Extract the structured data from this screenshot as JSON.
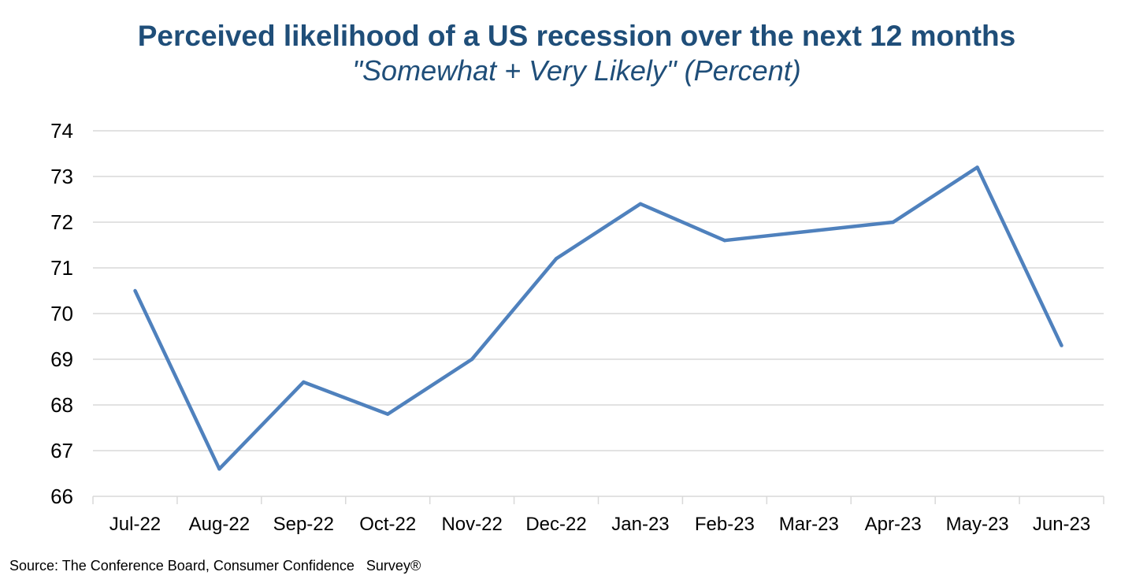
{
  "chart_data": {
    "type": "line",
    "title": "Perceived likelihood of a US recession over the next 12 months",
    "subtitle": "\"Somewhat + Very Likely\" (Percent)",
    "categories": [
      "Jul-22",
      "Aug-22",
      "Sep-22",
      "Oct-22",
      "Nov-22",
      "Dec-22",
      "Jan-23",
      "Feb-23",
      "Mar-23",
      "Apr-23",
      "May-23",
      "Jun-23"
    ],
    "series": [
      {
        "values": [
          70.5,
          66.6,
          68.5,
          67.8,
          69.0,
          71.2,
          72.4,
          71.6,
          null,
          72.0,
          73.2,
          69.3
        ],
        "color": "#4f81bd"
      }
    ],
    "ylim": [
      66,
      74
    ],
    "yticks": [
      66,
      67,
      68,
      69,
      70,
      71,
      72,
      73,
      74
    ],
    "grid": true,
    "legend": "none"
  },
  "source": "Source: The Conference Board, Consumer Confidence   Survey®"
}
